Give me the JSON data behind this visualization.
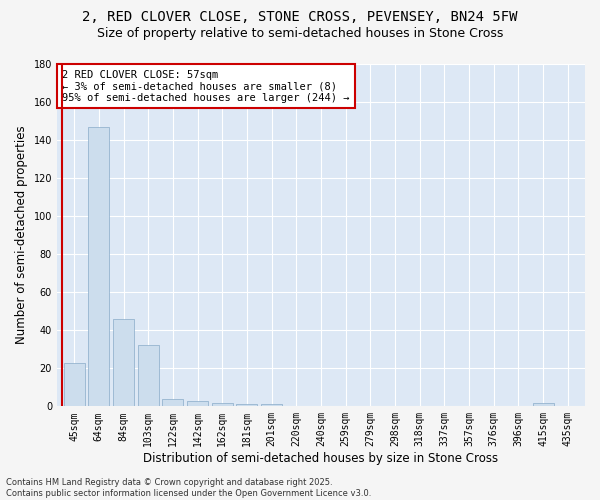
{
  "title_line1": "2, RED CLOVER CLOSE, STONE CROSS, PEVENSEY, BN24 5FW",
  "title_line2": "Size of property relative to semi-detached houses in Stone Cross",
  "xlabel": "Distribution of semi-detached houses by size in Stone Cross",
  "ylabel": "Number of semi-detached properties",
  "categories": [
    "45sqm",
    "64sqm",
    "84sqm",
    "103sqm",
    "122sqm",
    "142sqm",
    "162sqm",
    "181sqm",
    "201sqm",
    "220sqm",
    "240sqm",
    "259sqm",
    "279sqm",
    "298sqm",
    "318sqm",
    "337sqm",
    "357sqm",
    "376sqm",
    "396sqm",
    "415sqm",
    "435sqm"
  ],
  "values": [
    23,
    147,
    46,
    32,
    4,
    3,
    2,
    1,
    1,
    0,
    0,
    0,
    0,
    0,
    0,
    0,
    0,
    0,
    0,
    2,
    0
  ],
  "bar_color": "#ccdded",
  "bar_edge_color": "#88aac8",
  "reference_line_color": "#cc0000",
  "annotation_text": "2 RED CLOVER CLOSE: 57sqm\n← 3% of semi-detached houses are smaller (8)\n95% of semi-detached houses are larger (244) →",
  "annotation_box_color": "#ffffff",
  "annotation_box_edge": "#cc0000",
  "ylim": [
    0,
    180
  ],
  "yticks": [
    0,
    20,
    40,
    60,
    80,
    100,
    120,
    140,
    160,
    180
  ],
  "plot_bg_color": "#dde8f5",
  "grid_color": "#ffffff",
  "fig_bg_color": "#f5f5f5",
  "footer_text": "Contains HM Land Registry data © Crown copyright and database right 2025.\nContains public sector information licensed under the Open Government Licence v3.0.",
  "title_fontsize": 10,
  "subtitle_fontsize": 9,
  "axis_label_fontsize": 8.5,
  "tick_fontsize": 7,
  "annotation_fontsize": 7.5,
  "footer_fontsize": 6,
  "ref_line_x": -0.5
}
